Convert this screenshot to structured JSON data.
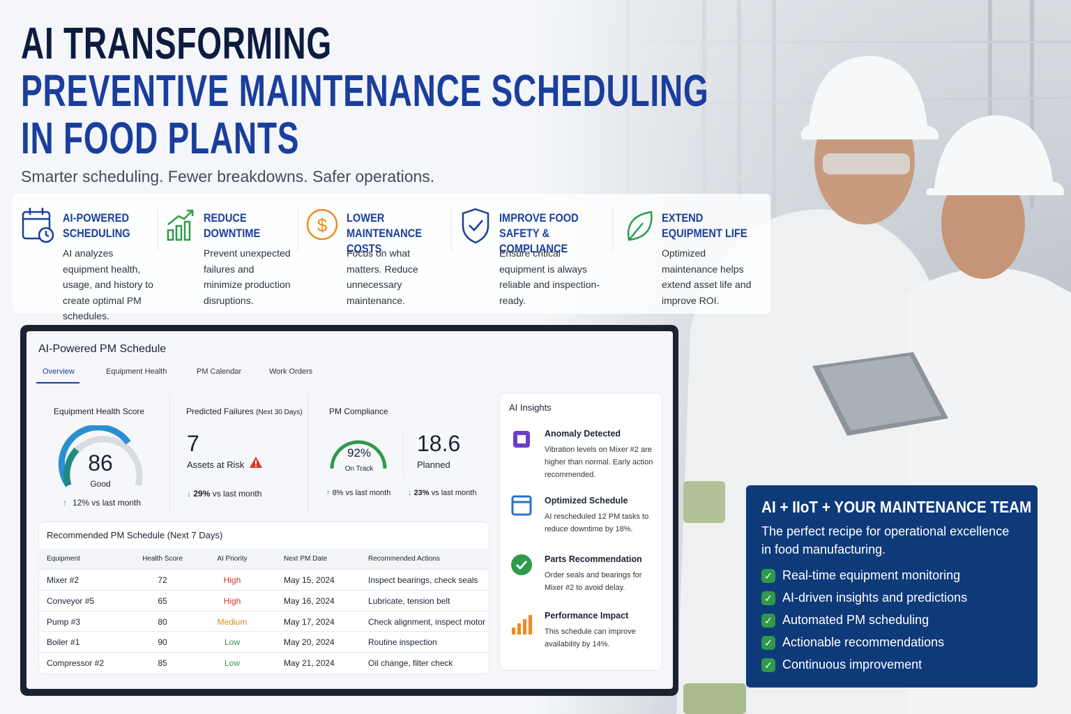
{
  "header": {
    "title_line1": "AI TRANSFORMING",
    "title_line2": "PREVENTIVE MAINTENANCE SCHEDULING",
    "title_line3": "IN FOOD PLANTS",
    "subtitle": "Smarter scheduling. Fewer breakdowns. Safer operations."
  },
  "features": [
    {
      "title": "AI-POWERED SCHEDULING",
      "text": "AI analyzes equipment health, usage, and history to create optimal PM schedules."
    },
    {
      "title": "REDUCE DOWNTIME",
      "text": "Prevent unexpected failures and minimize production disruptions."
    },
    {
      "title": "LOWER MAINTENANCE COSTS",
      "text": "Focus on what matters. Reduce unnecessary maintenance."
    },
    {
      "title": "IMPROVE FOOD SAFETY & COMPLIANCE",
      "text": "Ensure critical equipment is always reliable and inspection-ready."
    },
    {
      "title": "EXTEND EQUIPMENT LIFE",
      "text": "Optimized maintenance helps extend asset life and improve ROI."
    }
  ],
  "dashboard": {
    "title": "AI-Powered PM Schedule",
    "tabs": [
      "Overview",
      "Equipment Health",
      "PM Calendar",
      "Work Orders"
    ],
    "health": {
      "label": "Equipment Health Score",
      "value": 86,
      "status": "Good",
      "change": "12% vs last month"
    },
    "failures": {
      "label": "Predicted Failures",
      "sublabel": "(Next 30 Days)",
      "value": 7,
      "unit": "Assets at Risk",
      "change_value": "29%",
      "change_text": "vs last month"
    },
    "compliance": {
      "label": "PM Compliance",
      "value": "92%",
      "status": "On Track",
      "change": "8% vs last month",
      "planned_value": 18.6,
      "planned_label": "Planned",
      "planned_change_value": "23%",
      "planned_change_text": "vs last month"
    },
    "insights": {
      "title": "AI Insights",
      "items": [
        {
          "title": "Anomaly Detected",
          "text": "Vibration levels on Mixer #2 are higher than normal. Early action recommended."
        },
        {
          "title": "Optimized Schedule",
          "text": "AI rescheduled 12 PM tasks to reduce downtime by 18%."
        },
        {
          "title": "Parts Recommendation",
          "text": "Order seals and bearings for Mixer #2 to avoid delay."
        },
        {
          "title": "Performance Impact",
          "text": "This schedule can improve availability by 14%."
        }
      ]
    },
    "table": {
      "title": "Recommended PM Schedule (Next 7 Days)",
      "columns": [
        "Equipment",
        "Health Score",
        "AI Priority",
        "Next PM Date",
        "Recommended Actions"
      ],
      "rows": [
        [
          "Mixer #2",
          72,
          "High",
          "May 15, 2024",
          "Inspect bearings, check seals"
        ],
        [
          "Conveyor #5",
          65,
          "High",
          "May 16, 2024",
          "Lubricate, tension belt"
        ],
        [
          "Pump #3",
          80,
          "Medium",
          "May 17, 2024",
          "Check alignment, inspect motor"
        ],
        [
          "Boiler #1",
          90,
          "Low",
          "May 20, 2024",
          "Routine inspection"
        ],
        [
          "Compressor #2",
          85,
          "Low",
          "May 21, 2024",
          "Oil change, filter check"
        ]
      ],
      "priority_colors": [
        "#d9342b",
        "#d9342b",
        "#e08a1e",
        "#2e9a4a",
        "#2e9a4a"
      ]
    }
  },
  "panel": {
    "title": "AI + IIoT + YOUR MAINTENANCE TEAM",
    "text": "The perfect recipe for operational excellence in food manufacturing.",
    "items": [
      "Real-time equipment monitoring",
      "AI-driven insights and predictions",
      "Automated PM scheduling",
      "Actionable recommendations",
      "Continuous improvement"
    ]
  }
}
